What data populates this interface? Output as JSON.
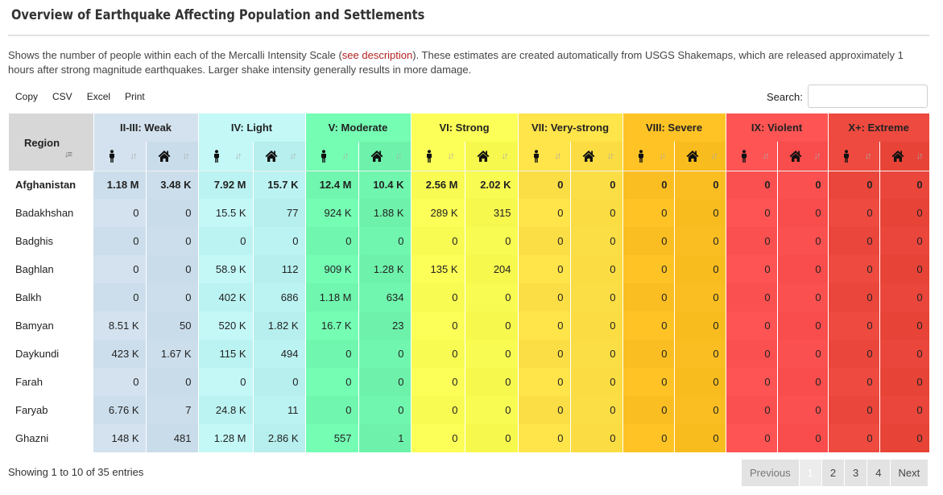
{
  "title": "Overview of Earthquake Affecting Population and Settlements",
  "description": {
    "before": "Shows the number of people within each of the Mercalli Intensity Scale (",
    "link": "see description",
    "after": "). These estimates are created automatically from USGS Shakemaps, which are released approximately 1 hours after strong magnitude earthquakes. Larger shake intensity generally results in more damage."
  },
  "toolbar": {
    "copy": "Copy",
    "csv": "CSV",
    "excel": "Excel",
    "print": "Print"
  },
  "search": {
    "label": "Search:",
    "value": ""
  },
  "table": {
    "region_header": "Region",
    "groups": [
      "II-III: Weak",
      "IV: Light",
      "V: Moderate",
      "VI: Strong",
      "VII: Very-strong",
      "VIII: Severe",
      "IX: Violent",
      "X+: Extreme"
    ],
    "rows": [
      {
        "region": "Afghanistan",
        "values": [
          "1.18 M",
          "3.48 K",
          "7.92 M",
          "15.7 K",
          "12.4 M",
          "10.4 K",
          "2.56 M",
          "2.02 K",
          "0",
          "0",
          "0",
          "0",
          "0",
          "0",
          "0",
          "0"
        ]
      },
      {
        "region": "Badakhshan",
        "values": [
          "0",
          "0",
          "15.5 K",
          "77",
          "924 K",
          "1.88 K",
          "289 K",
          "315",
          "0",
          "0",
          "0",
          "0",
          "0",
          "0",
          "0",
          "0"
        ]
      },
      {
        "region": "Badghis",
        "values": [
          "0",
          "0",
          "0",
          "0",
          "0",
          "0",
          "0",
          "0",
          "0",
          "0",
          "0",
          "0",
          "0",
          "0",
          "0",
          "0"
        ]
      },
      {
        "region": "Baghlan",
        "values": [
          "0",
          "0",
          "58.9 K",
          "112",
          "909 K",
          "1.28 K",
          "135 K",
          "204",
          "0",
          "0",
          "0",
          "0",
          "0",
          "0",
          "0",
          "0"
        ]
      },
      {
        "region": "Balkh",
        "values": [
          "0",
          "0",
          "402 K",
          "686",
          "1.18 M",
          "634",
          "0",
          "0",
          "0",
          "0",
          "0",
          "0",
          "0",
          "0",
          "0",
          "0"
        ]
      },
      {
        "region": "Bamyan",
        "values": [
          "8.51 K",
          "50",
          "520 K",
          "1.82 K",
          "16.7 K",
          "23",
          "0",
          "0",
          "0",
          "0",
          "0",
          "0",
          "0",
          "0",
          "0",
          "0"
        ]
      },
      {
        "region": "Daykundi",
        "values": [
          "423 K",
          "1.67 K",
          "115 K",
          "494",
          "0",
          "0",
          "0",
          "0",
          "0",
          "0",
          "0",
          "0",
          "0",
          "0",
          "0",
          "0"
        ]
      },
      {
        "region": "Farah",
        "values": [
          "0",
          "0",
          "0",
          "0",
          "0",
          "0",
          "0",
          "0",
          "0",
          "0",
          "0",
          "0",
          "0",
          "0",
          "0",
          "0"
        ]
      },
      {
        "region": "Faryab",
        "values": [
          "6.76 K",
          "7",
          "24.8 K",
          "11",
          "0",
          "0",
          "0",
          "0",
          "0",
          "0",
          "0",
          "0",
          "0",
          "0",
          "0",
          "0"
        ]
      },
      {
        "region": "Ghazni",
        "values": [
          "148 K",
          "481",
          "1.28 M",
          "2.86 K",
          "557",
          "1",
          "0",
          "0",
          "0",
          "0",
          "0",
          "0",
          "0",
          "0",
          "0",
          "0"
        ]
      }
    ]
  },
  "footer": {
    "info": "Showing 1 to 10 of 35 entries",
    "previous": "Previous",
    "pages": [
      "1",
      "2",
      "3",
      "4"
    ],
    "next": "Next"
  },
  "icons": {
    "people": "person-icon",
    "settlements": "house-icon",
    "sort": "sort-icon"
  }
}
